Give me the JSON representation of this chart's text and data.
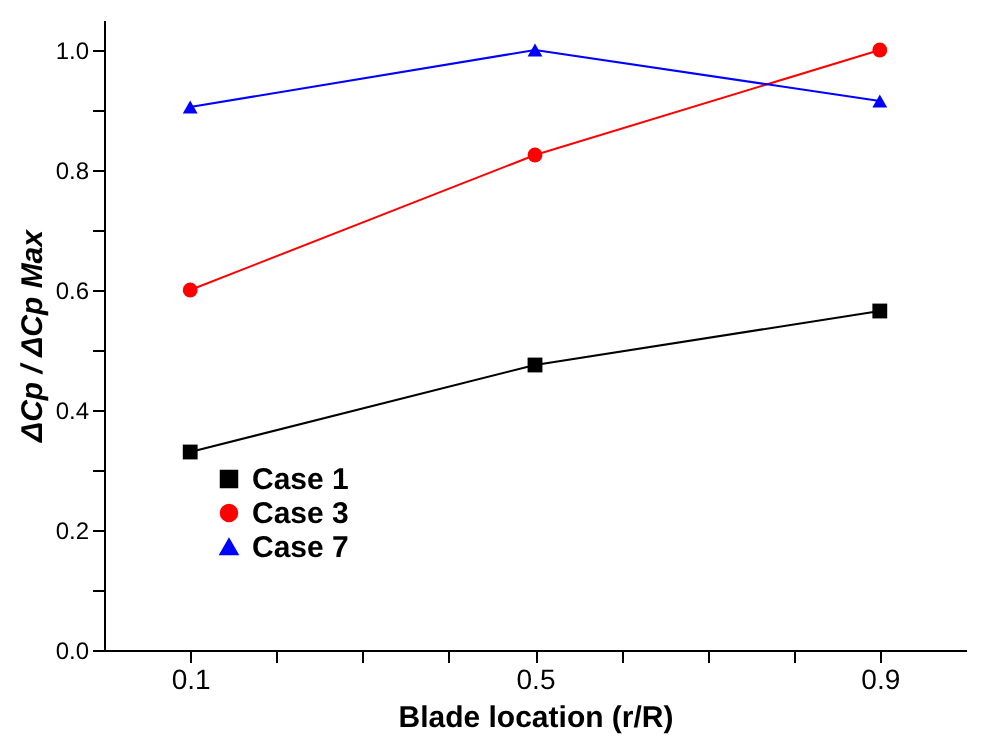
{
  "chart_data": {
    "type": "line",
    "xlabel": "Blade location (r/R)",
    "ylabel": "ΔCp / ΔCp Max",
    "x": [
      0.1,
      0.5,
      0.9
    ],
    "series": [
      {
        "name": "Case 1",
        "color": "#000000",
        "marker": "square",
        "values": [
          0.33,
          0.475,
          0.565
        ]
      },
      {
        "name": "Case 3",
        "color": "#ff0000",
        "marker": "circle",
        "values": [
          0.6,
          0.825,
          1.0
        ]
      },
      {
        "name": "Case 7",
        "color": "#0000ff",
        "marker": "triangle",
        "values": [
          0.905,
          1.0,
          0.915
        ]
      }
    ],
    "xlim": [
      0,
      1
    ],
    "xticks": [
      {
        "value": 0.1,
        "label": "0.1"
      },
      {
        "value": 0.2,
        "label": null
      },
      {
        "value": 0.3,
        "label": null
      },
      {
        "value": 0.4,
        "label": null
      },
      {
        "value": 0.5,
        "label": "0.5"
      },
      {
        "value": 0.6,
        "label": null
      },
      {
        "value": 0.7,
        "label": null
      },
      {
        "value": 0.8,
        "label": null
      },
      {
        "value": 0.9,
        "label": "0.9"
      }
    ],
    "ylim": [
      0,
      1.05
    ],
    "yticks": [
      {
        "value": 0,
        "label": "0.0"
      },
      {
        "value": 0.1,
        "label": null
      },
      {
        "value": 0.2,
        "label": "0.2"
      },
      {
        "value": 0.3,
        "label": null
      },
      {
        "value": 0.4,
        "label": "0.4"
      },
      {
        "value": 0.5,
        "label": null
      },
      {
        "value": 0.6,
        "label": "0.6"
      },
      {
        "value": 0.7,
        "label": null
      },
      {
        "value": 0.8,
        "label": "0.8"
      },
      {
        "value": 0.9,
        "label": null
      },
      {
        "value": 1.0,
        "label": "1.0"
      }
    ],
    "grid": false,
    "legend": "bottom left",
    "line_style": "solid"
  }
}
